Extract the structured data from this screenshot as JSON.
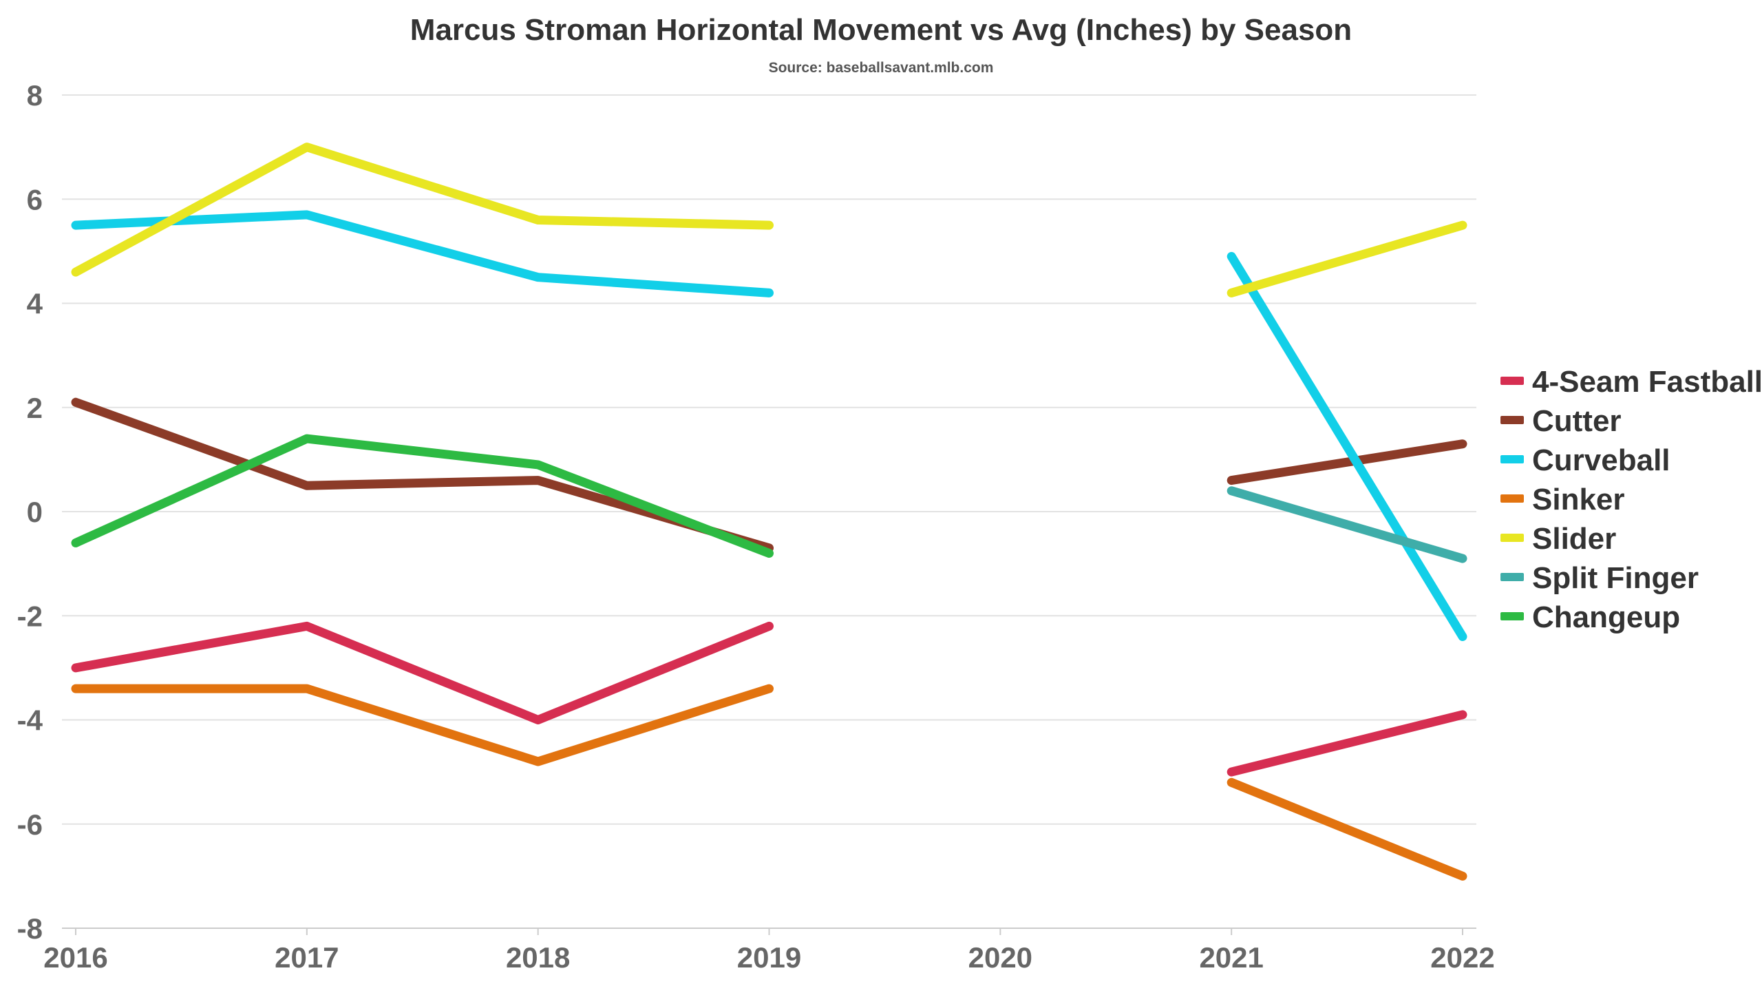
{
  "chart_data": {
    "type": "line",
    "title": "Marcus Stroman Horizontal Movement vs Avg (Inches) by Season",
    "subtitle": "Source: baseballsavant.mlb.com",
    "xlabel": "",
    "ylabel": "",
    "categories": [
      "2016",
      "2017",
      "2018",
      "2019",
      "2020",
      "2021",
      "2022"
    ],
    "ylim": [
      -8,
      8
    ],
    "yticks": [
      8,
      6,
      4,
      2,
      0,
      -2,
      -4,
      -6,
      -8
    ],
    "grid": true,
    "legend_position": "right",
    "series": [
      {
        "name": "4-Seam Fastball",
        "color": "#d62e51",
        "values": [
          -3.0,
          -2.2,
          -4.0,
          -2.2,
          null,
          -5.0,
          -3.9
        ]
      },
      {
        "name": "Cutter",
        "color": "#8c3b28",
        "values": [
          2.1,
          0.5,
          0.6,
          -0.7,
          null,
          0.6,
          1.3
        ]
      },
      {
        "name": "Curveball",
        "color": "#12cfe8",
        "values": [
          5.5,
          5.7,
          4.5,
          4.2,
          null,
          4.9,
          -2.4
        ]
      },
      {
        "name": "Sinker",
        "color": "#e2730f",
        "values": [
          -3.4,
          -3.4,
          -4.8,
          -3.4,
          null,
          -5.2,
          -7.0
        ]
      },
      {
        "name": "Slider",
        "color": "#e8e622",
        "values": [
          4.6,
          7.0,
          5.6,
          5.5,
          null,
          4.2,
          5.5
        ]
      },
      {
        "name": "Split Finger",
        "color": "#3fada9",
        "values": [
          null,
          null,
          null,
          null,
          null,
          0.4,
          -0.9
        ]
      },
      {
        "name": "Changeup",
        "color": "#2dba43",
        "values": [
          -0.6,
          1.4,
          0.9,
          -0.8,
          null,
          null,
          null
        ]
      }
    ]
  }
}
